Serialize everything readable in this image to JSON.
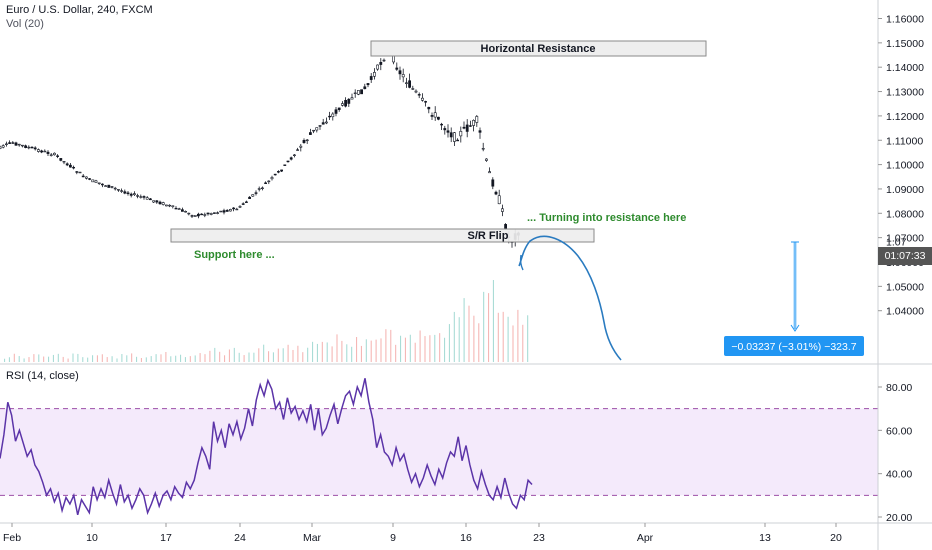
{
  "legend": {
    "symbol": "Euro / U.S. Dollar, 240, FXCM",
    "volume": "Vol (20)",
    "rsi": "RSI (14, close)"
  },
  "annotations": {
    "horizontal_resistance": "Horizontal Resistance",
    "sr_flip": "S/R Flip",
    "support_here": "Support here ...",
    "turning_resistance": "... Turning into resistance here",
    "measure": "−0.03237 (−3.01%) −323.7",
    "countdown": "01:07:33"
  },
  "colors": {
    "up": "#26a69a",
    "down": "#ef5350",
    "candle": "#131722",
    "projection": "#2a7bc0",
    "rsi_line": "#5b34a8",
    "rsi_band": "#f4eafb",
    "rsi_dash": "#9c4fa8",
    "green_text": "#2e8b2e",
    "measure_bg": "#2196f3"
  },
  "chart_data": [
    {
      "type": "candlestick",
      "title": "Euro / U.S. Dollar, 240, FXCM",
      "ylim": [
        1.031,
        1.166
      ],
      "y_ticks": [
        "1.16000",
        "1.15000",
        "1.14000",
        "1.13000",
        "1.12000",
        "1.11000",
        "1.10000",
        "1.09000",
        "1.08000",
        "1.07000",
        "1.06000",
        "1.05000",
        "1.04000"
      ],
      "x_ticks": [
        "Feb",
        "10",
        "17",
        "24",
        "Mar",
        "9",
        "16",
        "23",
        "Apr",
        "13",
        "20"
      ],
      "current_price_label": "1.07",
      "price_path": [
        {
          "x": "Feb 1",
          "y": 1.105
        },
        {
          "x": "Feb 3",
          "y": 1.109
        },
        {
          "x": "Feb 7",
          "y": 1.104
        },
        {
          "x": "Feb 10",
          "y": 1.094
        },
        {
          "x": "Feb 14",
          "y": 1.088
        },
        {
          "x": "Feb 17",
          "y": 1.084
        },
        {
          "x": "Feb 20",
          "y": 1.079
        },
        {
          "x": "Feb 24",
          "y": 1.082
        },
        {
          "x": "Feb 28",
          "y": 1.098
        },
        {
          "x": "Mar 2",
          "y": 1.113
        },
        {
          "x": "Mar 5",
          "y": 1.125
        },
        {
          "x": "Mar 7",
          "y": 1.132
        },
        {
          "x": "Mar 9",
          "y": 1.148
        },
        {
          "x": "Mar 10",
          "y": 1.138
        },
        {
          "x": "Mar 12",
          "y": 1.126
        },
        {
          "x": "Mar 15",
          "y": 1.111
        },
        {
          "x": "Mar 17",
          "y": 1.118
        },
        {
          "x": "Mar 18",
          "y": 1.098
        },
        {
          "x": "Mar 19",
          "y": 1.086
        },
        {
          "x": "Mar 20",
          "y": 1.068
        },
        {
          "x": "Mar 21",
          "y": 1.074
        }
      ],
      "zones": [
        {
          "label": "Horizontal Resistance",
          "price_top": 1.1515,
          "price_bottom": 1.1455
        },
        {
          "label": "S/R Flip",
          "price_top": 1.0815,
          "price_bottom": 1.0785
        }
      ]
    },
    {
      "type": "bar",
      "title": "Vol (20)",
      "series": [
        {
          "values": [
            2,
            3,
            2,
            3,
            2,
            3,
            2,
            3,
            2,
            3,
            3,
            2,
            3,
            3,
            2,
            3,
            4,
            3,
            3,
            3,
            4,
            5,
            4,
            5,
            4,
            5,
            6,
            5,
            6,
            7,
            6,
            8,
            7,
            9,
            10,
            8,
            9,
            11,
            10,
            12,
            9,
            11,
            12,
            14,
            16,
            15,
            18,
            22,
            20,
            24,
            30,
            26,
            20,
            18
          ]
        }
      ]
    },
    {
      "type": "line",
      "title": "RSI (14, close)",
      "ylim": [
        16,
        86
      ],
      "y_ticks": [
        "80.00",
        "60.00",
        "40.00",
        "20.00"
      ],
      "bands": [
        70,
        30
      ],
      "series": [
        {
          "values": [
            47,
            58,
            73,
            67,
            55,
            60,
            54,
            48,
            51,
            44,
            41,
            36,
            30,
            33,
            27,
            31,
            23,
            29,
            26,
            30,
            21,
            28,
            25,
            22,
            34,
            28,
            33,
            29,
            37,
            31,
            26,
            35,
            27,
            30,
            24,
            28,
            33,
            30,
            22,
            26,
            31,
            25,
            30,
            32,
            28,
            34,
            31,
            29,
            36,
            33,
            37,
            45,
            52,
            48,
            42,
            64,
            55,
            60,
            52,
            63,
            58,
            64,
            56,
            61,
            70,
            62,
            74,
            81,
            76,
            83,
            79,
            70,
            73,
            65,
            75,
            68,
            71,
            65,
            69,
            64,
            72,
            60,
            70,
            58,
            61,
            67,
            72,
            63,
            70,
            76,
            78,
            72,
            80,
            76,
            84,
            73,
            65,
            52,
            58,
            50,
            48,
            44,
            52,
            46,
            49,
            42,
            36,
            40,
            34,
            38,
            44,
            39,
            35,
            42,
            38,
            45,
            50,
            48,
            57,
            46,
            53,
            44,
            37,
            33,
            41,
            35,
            30,
            28,
            34,
            29,
            38,
            31,
            26,
            24,
            30,
            28,
            37,
            35
          ]
        }
      ]
    }
  ]
}
